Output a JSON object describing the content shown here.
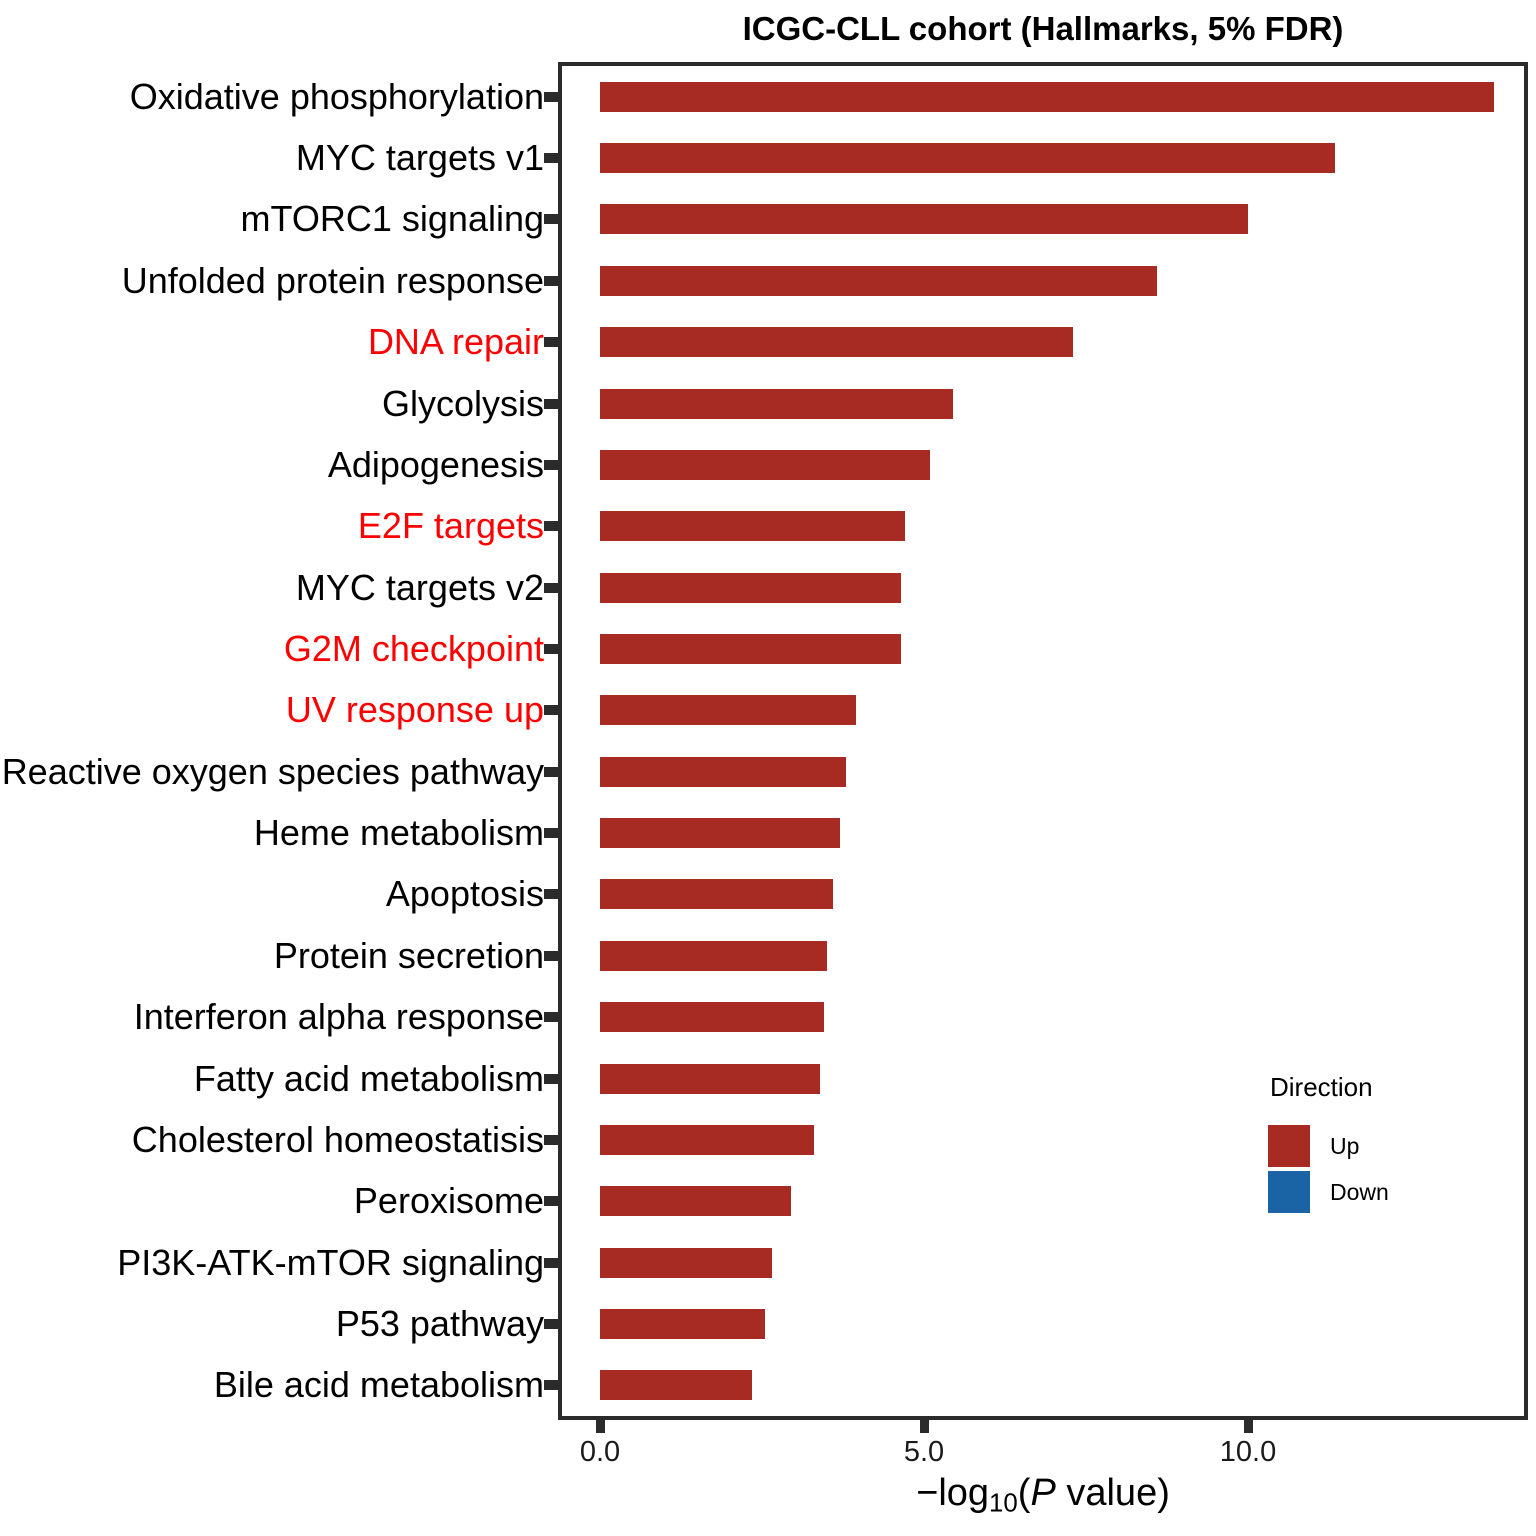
{
  "title": "ICGC-CLL cohort (Hallmarks, 5% FDR)",
  "x_axis": {
    "label_parts": {
      "prefix": "−log",
      "sub": "10",
      "open": "(",
      "italic": "P",
      "rest": " value)"
    },
    "tick_labels": [
      "0.0",
      "5.0",
      "10.0"
    ],
    "tick_values": [
      0,
      5,
      10
    ]
  },
  "legend": {
    "title": "Direction",
    "items": [
      {
        "label": "Up",
        "color": "#a82b23"
      },
      {
        "label": "Down",
        "color": "#1a63a4"
      }
    ]
  },
  "colors": {
    "bar_up": "#a82b23",
    "bar_down": "#1a63a4",
    "highlight_label": "#ff0000",
    "normal_label": "#000000",
    "axis": "#2b2b2b"
  },
  "chart_data": {
    "type": "bar",
    "orientation": "horizontal",
    "title": "ICGC-CLL cohort (Hallmarks, 5% FDR)",
    "xlabel": "-log10(P value)",
    "ylabel": "",
    "xlim": [
      0,
      14.4
    ],
    "x_ticks": [
      0,
      5,
      10
    ],
    "grid": false,
    "legend_position": "right",
    "legend_title": "Direction",
    "legend_entries": [
      "Up",
      "Down"
    ],
    "categories": [
      "Oxidative phosphorylation",
      "MYC targets v1",
      "mTORC1 signaling",
      "Unfolded protein response",
      "DNA repair",
      "Glycolysis",
      "Adipogenesis",
      "E2F targets",
      "MYC targets v2",
      "G2M checkpoint",
      "UV response up",
      "Reactive oxygen species pathway",
      "Heme metabolism",
      "Apoptosis",
      "Protein secretion",
      "Interferon alpha response",
      "Fatty acid metabolism",
      "Cholesterol homeostatisis",
      "Peroxisome",
      "PI3K-ATK-mTOR signaling",
      "P53 pathway",
      "Bile acid metabolism"
    ],
    "values": [
      13.8,
      11.35,
      10.0,
      8.6,
      7.3,
      5.45,
      5.1,
      4.7,
      4.65,
      4.65,
      3.95,
      3.8,
      3.7,
      3.6,
      3.5,
      3.45,
      3.4,
      3.3,
      2.95,
      2.65,
      2.55,
      2.35
    ],
    "direction": [
      "Up",
      "Up",
      "Up",
      "Up",
      "Up",
      "Up",
      "Up",
      "Up",
      "Up",
      "Up",
      "Up",
      "Up",
      "Up",
      "Up",
      "Up",
      "Up",
      "Up",
      "Up",
      "Up",
      "Up",
      "Up",
      "Up"
    ],
    "highlighted_categories": [
      "DNA repair",
      "E2F targets",
      "G2M checkpoint",
      "UV response up"
    ]
  }
}
